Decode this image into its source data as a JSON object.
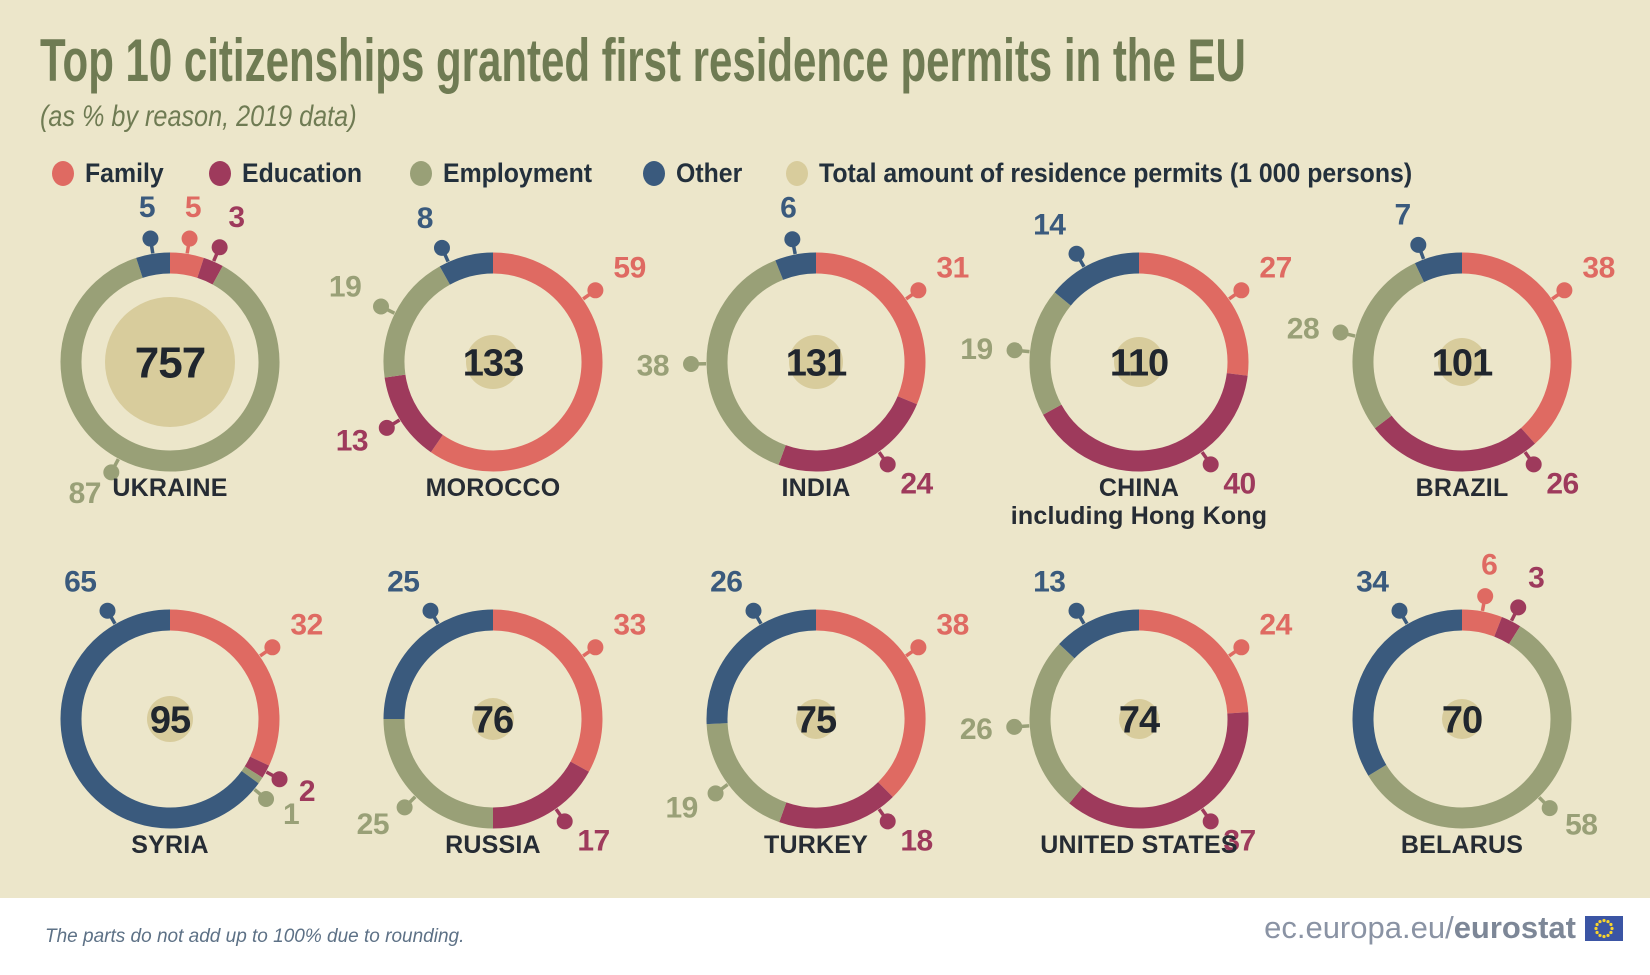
{
  "header": {
    "title": "Top 10 citizenships granted first residence permits in the EU",
    "subtitle": "(as % by reason, 2019 data)"
  },
  "legend": [
    {
      "key": "family",
      "label": "Family"
    },
    {
      "key": "education",
      "label": "Education"
    },
    {
      "key": "employment",
      "label": "Employment"
    },
    {
      "key": "other",
      "label": "Other"
    },
    {
      "key": "total",
      "label": "Total amount of residence permits (1 000 persons)"
    }
  ],
  "colors": {
    "background": "#ece6ca",
    "family": "#df6a62",
    "education": "#9e3a5c",
    "employment": "#99a077",
    "other": "#3a5a7d",
    "total": "#d8cc9c",
    "title": "#6f7b53",
    "country_label": "#262c34",
    "center_number": "#20262e",
    "footnote": "#5d7186",
    "footer_link": "#8a93a4",
    "flag_blue": "#3b55a4",
    "flag_stars": "#f8d42c"
  },
  "chart_data": {
    "type": "donut-grid",
    "unit": "% by reason",
    "center_value_meaning": "Total amount of residence permits (1 000 persons)",
    "reasons": [
      "family",
      "education",
      "employment",
      "other"
    ],
    "countries": [
      {
        "name": "UKRAINE",
        "total": 757,
        "values": {
          "family": 5,
          "education": 3,
          "employment": 87,
          "other": 5
        }
      },
      {
        "name": "MOROCCO",
        "total": 133,
        "values": {
          "family": 59,
          "education": 13,
          "employment": 19,
          "other": 8
        }
      },
      {
        "name": "INDIA",
        "total": 131,
        "values": {
          "family": 31,
          "education": 24,
          "employment": 38,
          "other": 6
        }
      },
      {
        "name": "CHINA",
        "subname": "including Hong Kong",
        "total": 110,
        "values": {
          "family": 27,
          "education": 40,
          "employment": 19,
          "other": 14
        }
      },
      {
        "name": "BRAZIL",
        "total": 101,
        "values": {
          "family": 38,
          "education": 26,
          "employment": 28,
          "other": 7
        }
      },
      {
        "name": "SYRIA",
        "total": 95,
        "values": {
          "family": 32,
          "education": 2,
          "employment": 1,
          "other": 65
        }
      },
      {
        "name": "RUSSIA",
        "total": 76,
        "values": {
          "family": 33,
          "education": 17,
          "employment": 25,
          "other": 25
        }
      },
      {
        "name": "TURKEY",
        "total": 75,
        "values": {
          "family": 38,
          "education": 18,
          "employment": 19,
          "other": 26
        }
      },
      {
        "name": "UNITED STATES",
        "total": 74,
        "values": {
          "family": 24,
          "education": 37,
          "employment": 26,
          "other": 13
        }
      },
      {
        "name": "BELARUS",
        "total": 70,
        "values": {
          "family": 6,
          "education": 3,
          "employment": 58,
          "other": 34
        }
      }
    ]
  },
  "footnote": "The parts do not add up to 100% due to rounding.",
  "footer": {
    "link_prefix": "ec.europa.eu/",
    "link_bold": "eurostat"
  }
}
